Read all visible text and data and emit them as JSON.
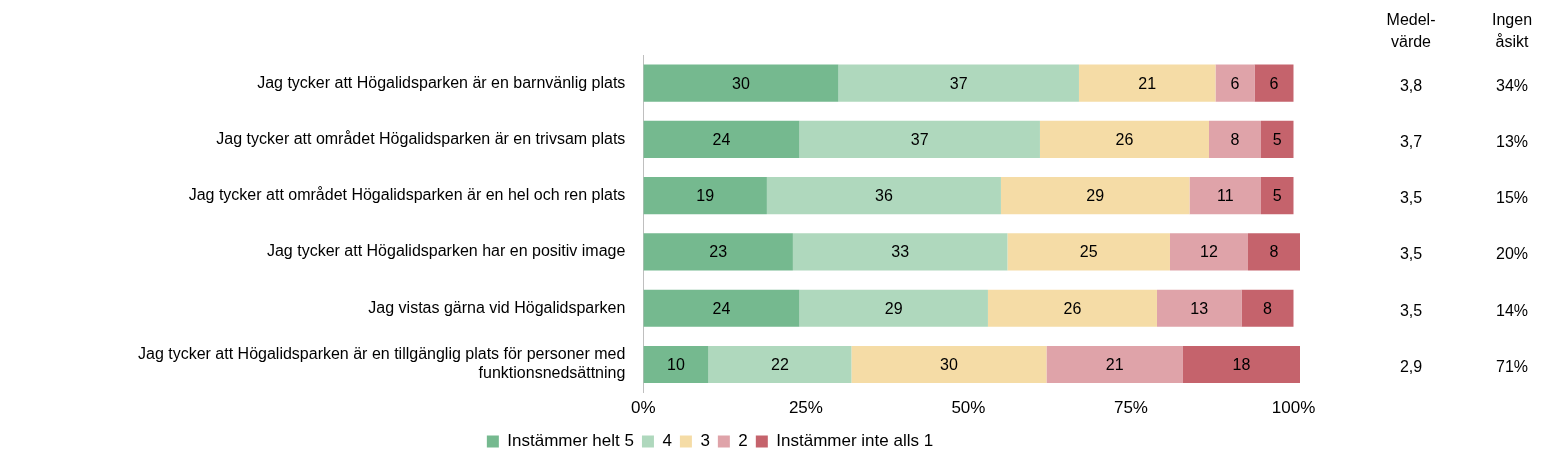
{
  "chart_data": {
    "type": "bar",
    "orientation": "horizontal",
    "stacked": true,
    "data_labels": true,
    "grid": false,
    "legend": "bottom",
    "categories": [
      "Jag tycker att Högalidsparken är en barnvänlig plats",
      "Jag tycker att området Högalidsparken är en trivsam plats",
      "Jag tycker att området Högalidsparken är en hel och ren plats",
      "Jag tycker att Högalidsparken har en positiv image",
      "Jag vistas gärna vid Högalidsparken",
      "Jag tycker att Högalidsparken är en tillgänglig plats för personer med funktionsnedsättning"
    ],
    "series": [
      {
        "name": "Instämmer helt 5",
        "color": "#75b98f",
        "values": [
          30,
          24,
          19,
          23,
          24,
          10
        ]
      },
      {
        "name": "4",
        "color": "#afd8bd",
        "values": [
          37,
          37,
          36,
          33,
          29,
          22
        ]
      },
      {
        "name": "3",
        "color": "#f5dca6",
        "values": [
          21,
          26,
          29,
          25,
          26,
          30
        ]
      },
      {
        "name": "2",
        "color": "#dfa3a9",
        "values": [
          6,
          8,
          11,
          12,
          13,
          21
        ]
      },
      {
        "name": "Instämmer inte alls 1",
        "color": "#c5636c",
        "values": [
          6,
          5,
          5,
          8,
          8,
          18
        ]
      }
    ],
    "xlim": [
      0,
      101
    ],
    "xticks": [
      {
        "value": 0,
        "label": "0%"
      },
      {
        "value": 25,
        "label": "25%"
      },
      {
        "value": 50,
        "label": "50%"
      },
      {
        "value": 75,
        "label": "75%"
      },
      {
        "value": 100,
        "label": "100%"
      }
    ],
    "annotations": [
      "Medel-\nvärde",
      "Ingen\nåsikt",
      "3,8",
      "34%",
      "3,7",
      "13%",
      "3,5",
      "15%",
      "3,5",
      "20%",
      "3,5",
      "14%",
      "2,9",
      "71%"
    ]
  }
}
